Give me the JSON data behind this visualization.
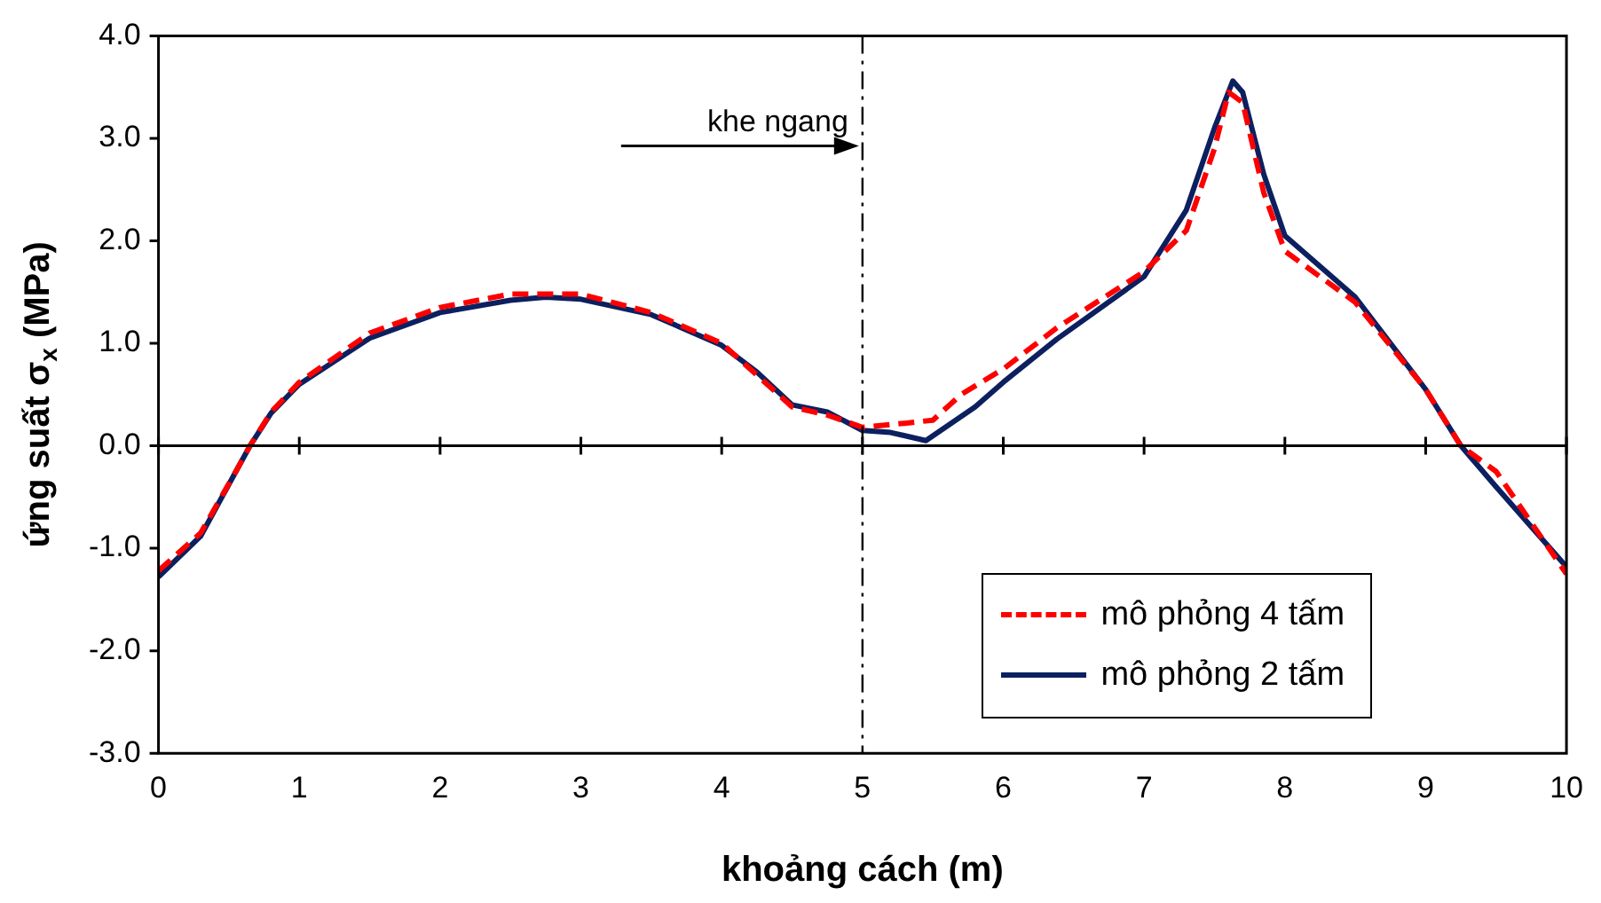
{
  "chart_data": {
    "type": "line",
    "xlabel": "khoảng cách (m)",
    "ylabel": "ứng suất σ$_{x}$ (MPa)",
    "xlim": [
      0,
      10
    ],
    "xticks": [
      0,
      1,
      2,
      3,
      4,
      5,
      6,
      7,
      8,
      9,
      10
    ],
    "ylim": [
      -3,
      4
    ],
    "yticks": [
      {
        "value": -3,
        "label": "-3.0"
      },
      {
        "value": -2,
        "label": "-2.0"
      },
      {
        "value": -1,
        "label": "-1.0"
      },
      {
        "value": 0,
        "label": "0.0"
      },
      {
        "value": 1,
        "label": "1.0"
      },
      {
        "value": 2,
        "label": "2.0"
      },
      {
        "value": 3,
        "label": "3.0"
      },
      {
        "value": 4,
        "label": "4.0"
      }
    ],
    "grid": false,
    "legend": "bottom right",
    "marker": "none",
    "ref_lines": [
      {
        "axis": "x",
        "value": 5,
        "label": "khe ngang",
        "line_style": "dashed",
        "color": "#000000"
      }
    ],
    "series": [
      {
        "name": "mô phỏng 4 tấm",
        "color": "#ff0000",
        "line_style": "dashed",
        "x": [
          0,
          0.3,
          0.55,
          0.65,
          0.8,
          1,
          1.5,
          2,
          2.5,
          3,
          3.5,
          4,
          4.5,
          4.75,
          5,
          5.3,
          5.5,
          5.7,
          6,
          6.38,
          7,
          7.3,
          7.5,
          7.6,
          7.7,
          7.85,
          8,
          8.5,
          9,
          9.25,
          9.5,
          10
        ],
        "values": [
          -1.22,
          -0.85,
          -0.25,
          0,
          0.33,
          0.62,
          1.1,
          1.35,
          1.48,
          1.48,
          1.3,
          1,
          0.38,
          0.3,
          0.18,
          0.22,
          0.25,
          0.5,
          0.75,
          1.15,
          1.7,
          2.1,
          2.9,
          3.45,
          3.35,
          2.47,
          1.9,
          1.4,
          0.55,
          0,
          -0.25,
          -1.25
        ]
      },
      {
        "name": "mô phỏng 2 tấm",
        "color": "#0c2060",
        "line_style": "solid",
        "x": [
          0,
          0.3,
          0.55,
          0.65,
          0.8,
          1,
          1.5,
          2,
          2.5,
          2.75,
          3,
          3.5,
          4,
          4.25,
          4.5,
          4.75,
          5,
          5.2,
          5.45,
          5.8,
          6,
          6.38,
          7,
          7.3,
          7.5,
          7.63,
          7.7,
          7.85,
          8,
          8.5,
          9,
          9.25,
          9.5,
          10
        ],
        "values": [
          -1.28,
          -0.88,
          -0.25,
          0,
          0.32,
          0.6,
          1.05,
          1.3,
          1.42,
          1.45,
          1.43,
          1.28,
          0.98,
          0.72,
          0.4,
          0.33,
          0.15,
          0.13,
          0.05,
          0.38,
          0.62,
          1.04,
          1.65,
          2.3,
          3.1,
          3.56,
          3.45,
          2.65,
          2.05,
          1.45,
          0.55,
          0,
          -0.4,
          -1.18
        ]
      }
    ]
  }
}
